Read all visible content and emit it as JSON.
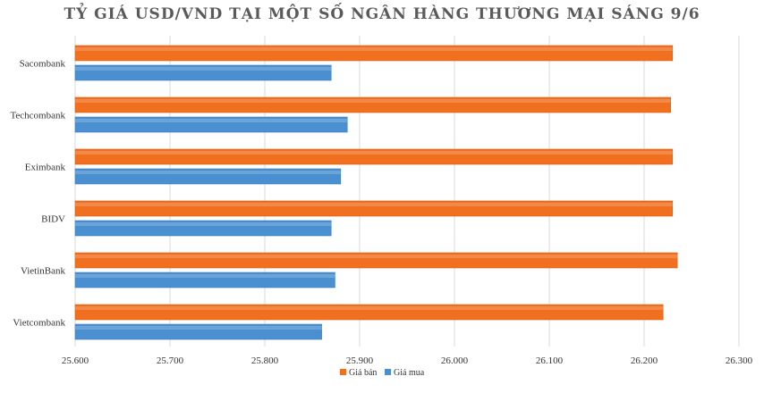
{
  "chart_data": {
    "type": "bar",
    "orientation": "horizontal",
    "title": "TỶ GIÁ USD/VND TẠI MỘT SỐ NGÂN HÀNG THƯƠNG MẠI SÁNG 9/6",
    "categories": [
      "Sacombank",
      "Techcombank",
      "Eximbank",
      "BIDV",
      "VietinBank",
      "Vietcombank"
    ],
    "series": [
      {
        "name": "Giá bán",
        "color": "#f07020",
        "values": [
          26230,
          26228,
          26230,
          26230,
          26235,
          26220
        ]
      },
      {
        "name": "Giá mua",
        "color": "#4a90d0",
        "values": [
          25870,
          25887,
          25880,
          25870,
          25874,
          25860
        ]
      }
    ],
    "xlim": [
      25600,
      26300
    ],
    "x_ticks": [
      25600,
      25700,
      25800,
      25900,
      26000,
      26100,
      26200,
      26300
    ],
    "x_tick_labels": [
      "25.600",
      "25.700",
      "25.800",
      "25.900",
      "26.000",
      "26.100",
      "26.200",
      "26.300"
    ],
    "grid": true,
    "legend_position": "bottom"
  }
}
